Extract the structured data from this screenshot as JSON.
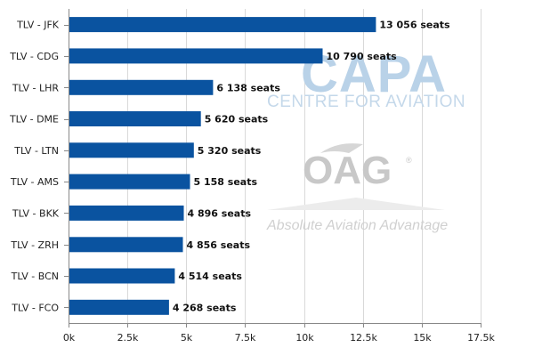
{
  "chart_data": {
    "type": "bar",
    "orientation": "horizontal",
    "categories": [
      "TLV - JFK",
      "TLV - CDG",
      "TLV - LHR",
      "TLV - DME",
      "TLV - LTN",
      "TLV - AMS",
      "TLV - BKK",
      "TLV - ZRH",
      "TLV - BCN",
      "TLV - FCO"
    ],
    "values": [
      13056,
      10790,
      6138,
      5620,
      5320,
      5158,
      4896,
      4856,
      4514,
      4268
    ],
    "data_labels": [
      "13 056 seats",
      "10 790 seats",
      "6 138 seats",
      "5 620 seats",
      "5 320 seats",
      "5 158 seats",
      "4 896 seats",
      "4 856 seats",
      "4 514 seats",
      "4 268 seats"
    ],
    "xlim": [
      0,
      17500
    ],
    "x_ticks": [
      0,
      2500,
      5000,
      7500,
      10000,
      12500,
      15000,
      17500
    ],
    "x_tick_labels": [
      "0k",
      "2.5k",
      "5k",
      "7.5k",
      "10k",
      "12.5k",
      "15k",
      "17.5k"
    ],
    "title": "",
    "xlabel": "",
    "ylabel": "",
    "grid": "vertical",
    "legend": "none",
    "bar_color": "#0a53a0",
    "grid_color": "#d9d9d9",
    "axis_color": "#888888"
  },
  "watermarks": {
    "capa_logo": "CAPA",
    "capa_sub": "CENTRE FOR AVIATION",
    "oag_logo": "OAG",
    "oag_reg": "®",
    "oag_tagline": "Absolute Aviation Advantage"
  }
}
